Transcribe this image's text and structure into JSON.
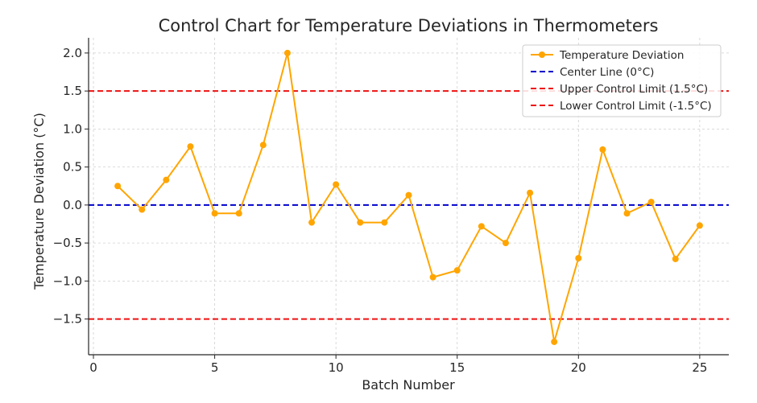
{
  "chart_data": {
    "type": "line",
    "title": "Control Chart for Temperature Deviations in Thermometers",
    "xlabel": "Batch Number",
    "ylabel": "Temperature Deviation (°C)",
    "xlim": [
      -0.2,
      26.2
    ],
    "ylim": [
      -1.97,
      2.2
    ],
    "xticks": [
      0,
      5,
      10,
      15,
      20,
      25
    ],
    "yticks": [
      -1.5,
      -1.0,
      -0.5,
      0.0,
      0.5,
      1.0,
      1.5,
      2.0
    ],
    "grid": true,
    "legend_position": "top-right",
    "series": [
      {
        "name": "Temperature Deviation",
        "color": "#FFA500",
        "marker": "circle",
        "x": [
          1,
          2,
          3,
          4,
          5,
          6,
          7,
          8,
          9,
          10,
          11,
          12,
          13,
          14,
          15,
          16,
          17,
          18,
          19,
          20,
          21,
          22,
          23,
          24,
          25
        ],
        "y": [
          0.25,
          -0.06,
          0.33,
          0.77,
          -0.11,
          -0.11,
          0.79,
          2.0,
          -0.23,
          0.27,
          -0.23,
          -0.23,
          0.13,
          -0.95,
          -0.86,
          -0.28,
          -0.5,
          0.16,
          -1.8,
          -0.7,
          0.73,
          -0.11,
          0.04,
          -0.71,
          -0.27
        ]
      }
    ],
    "reference_lines": [
      {
        "name": "Center Line (0°C)",
        "value": 0,
        "color": "#0000CC",
        "style": "dashed"
      },
      {
        "name": "Upper Control Limit (1.5°C)",
        "value": 1.5,
        "color": "#EE1111",
        "style": "dashed"
      },
      {
        "name": "Lower Control Limit (-1.5°C)",
        "value": -1.5,
        "color": "#EE1111",
        "style": "dashed"
      }
    ]
  }
}
